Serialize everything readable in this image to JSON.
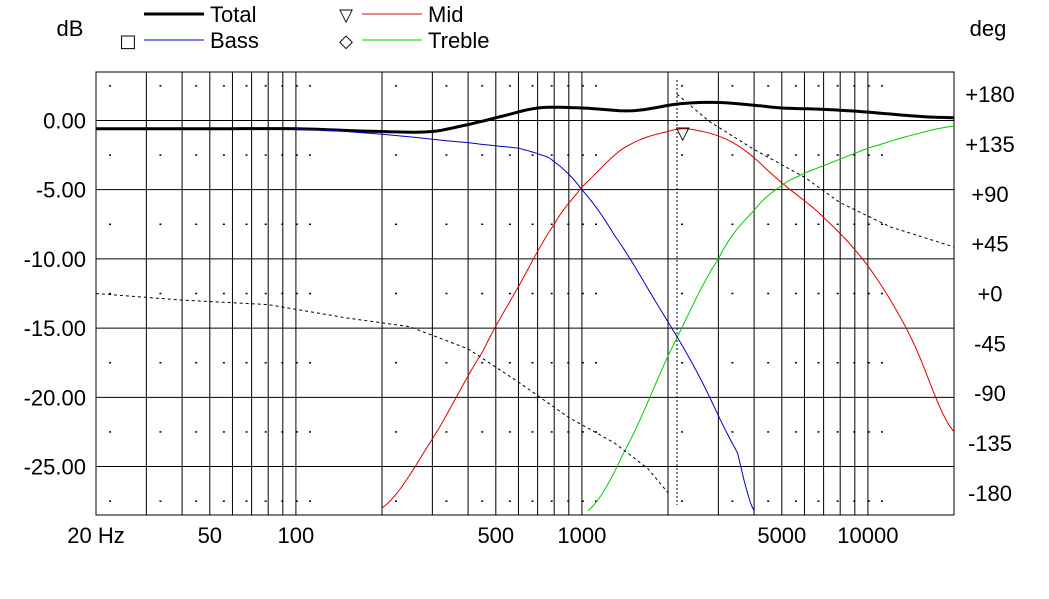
{
  "chart_data": {
    "type": "line",
    "x_scale": "log",
    "x_range_hz": [
      20,
      20000
    ],
    "y_left": {
      "label": "dB",
      "range": [
        -28.5,
        3.5
      ]
    },
    "y_right": {
      "label": "deg",
      "range": [
        -200,
        200
      ]
    },
    "grid": true,
    "x_ticks": [
      {
        "label": "20 Hz",
        "value": 20
      },
      {
        "label": "50",
        "value": 50
      },
      {
        "label": "100",
        "value": 100
      },
      {
        "label": "500",
        "value": 500
      },
      {
        "label": "1000",
        "value": 1000
      },
      {
        "label": "5000",
        "value": 5000
      },
      {
        "label": "10000",
        "value": 10000
      }
    ],
    "y_left_ticks": [
      {
        "label": "0.00",
        "value": 0
      },
      {
        "label": "-5.00",
        "value": -5
      },
      {
        "label": "-10.00",
        "value": -10
      },
      {
        "label": "-15.00",
        "value": -15
      },
      {
        "label": "-20.00",
        "value": -20
      },
      {
        "label": "-25.00",
        "value": -25
      }
    ],
    "y_right_ticks": [
      {
        "label": "+180",
        "value": 180
      },
      {
        "label": "+135",
        "value": 135
      },
      {
        "label": "+90",
        "value": 90
      },
      {
        "label": "+45",
        "value": 45
      },
      {
        "label": "+0",
        "value": 0
      },
      {
        "label": "-45",
        "value": -45
      },
      {
        "label": "-90",
        "value": -90
      },
      {
        "label": "-135",
        "value": -135
      },
      {
        "label": "-180",
        "value": -180
      }
    ],
    "legend": [
      {
        "name": "Total",
        "symbol": "",
        "color": "#000000"
      },
      {
        "name": "Bass",
        "symbol": "□",
        "color": "#0000cc"
      },
      {
        "name": "Mid",
        "symbol": "▽",
        "color": "#dd0000"
      },
      {
        "name": "Treble",
        "symbol": "◇",
        "color": "#00cc00"
      }
    ],
    "series": [
      {
        "name": "Total",
        "color": "#000000",
        "axis": "left",
        "points": [
          [
            20,
            -0.6
          ],
          [
            50,
            -0.6
          ],
          [
            100,
            -0.6
          ],
          [
            200,
            -0.8
          ],
          [
            300,
            -0.8
          ],
          [
            400,
            -0.3
          ],
          [
            500,
            0.2
          ],
          [
            700,
            0.9
          ],
          [
            1000,
            0.9
          ],
          [
            1500,
            0.7
          ],
          [
            2200,
            1.2
          ],
          [
            3000,
            1.3
          ],
          [
            4000,
            1.1
          ],
          [
            5000,
            0.9
          ],
          [
            7000,
            0.8
          ],
          [
            10000,
            0.6
          ],
          [
            15000,
            0.3
          ],
          [
            20000,
            0.2
          ]
        ]
      },
      {
        "name": "Bass",
        "color": "#0000cc",
        "axis": "left",
        "points": [
          [
            100,
            -0.6
          ],
          [
            200,
            -1.0
          ],
          [
            400,
            -1.6
          ],
          [
            600,
            -2.0
          ],
          [
            700,
            -2.4
          ],
          [
            800,
            -3.0
          ],
          [
            1000,
            -5.0
          ],
          [
            1300,
            -8.3
          ],
          [
            1800,
            -13.0
          ],
          [
            2500,
            -18.0
          ],
          [
            3500,
            -24.0
          ],
          [
            4000,
            -28.2
          ]
        ]
      },
      {
        "name": "Mid",
        "color": "#dd0000",
        "axis": "left",
        "points": [
          [
            200,
            -28.0
          ],
          [
            300,
            -23.0
          ],
          [
            450,
            -16.7
          ],
          [
            600,
            -12.0
          ],
          [
            800,
            -7.5
          ],
          [
            1000,
            -4.8
          ],
          [
            1400,
            -2.0
          ],
          [
            2000,
            -0.8
          ],
          [
            2500,
            -0.7
          ],
          [
            3500,
            -1.8
          ],
          [
            5000,
            -4.5
          ],
          [
            7000,
            -7.0
          ],
          [
            10000,
            -10.5
          ],
          [
            14000,
            -15.5
          ],
          [
            20000,
            -22.5
          ]
        ]
      },
      {
        "name": "Treble",
        "color": "#00cc00",
        "axis": "left",
        "points": [
          [
            1050,
            -28.2
          ],
          [
            1400,
            -24.0
          ],
          [
            2000,
            -17.0
          ],
          [
            3000,
            -10.0
          ],
          [
            4000,
            -6.5
          ],
          [
            5000,
            -4.7
          ],
          [
            6000,
            -3.8
          ],
          [
            8000,
            -2.8
          ],
          [
            10000,
            -2.0
          ],
          [
            14000,
            -1.1
          ],
          [
            20000,
            -0.4
          ]
        ]
      },
      {
        "name": "",
        "color": "#000000",
        "dashed": true,
        "axis": "right",
        "points": [
          [
            20,
            0
          ],
          [
            40,
            -6
          ],
          [
            80,
            -10
          ],
          [
            150,
            -22
          ],
          [
            250,
            -30
          ],
          [
            400,
            -50
          ],
          [
            600,
            -80
          ],
          [
            900,
            -112
          ],
          [
            1300,
            -135
          ],
          [
            1700,
            -158
          ],
          [
            2000,
            -180
          ],
          [
            2150,
            180
          ],
          [
            2800,
            155
          ],
          [
            4000,
            130
          ],
          [
            6000,
            105
          ],
          [
            8000,
            82
          ],
          [
            12000,
            60
          ],
          [
            20000,
            42
          ]
        ]
      }
    ],
    "markers": [
      {
        "series": "Mid",
        "symbol": "▽",
        "x": 2250,
        "y": -0.6
      }
    ],
    "cursor_x_hz": 2150
  }
}
